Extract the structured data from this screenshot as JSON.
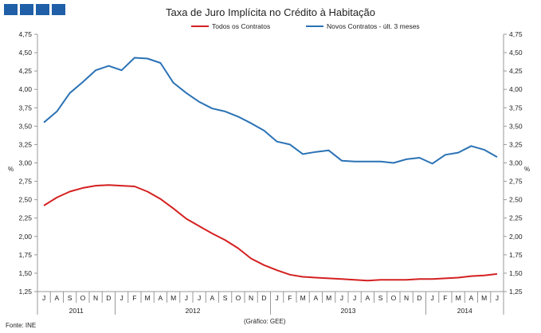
{
  "title": "Taxa de Juro Implícita no Crédito à Habitação",
  "source": "Fonte: INE",
  "credit": "(Gráfico: GEE)",
  "colors": {
    "series1": "#d42020",
    "series2": "#2a72b5",
    "logo": "#1f5fa8",
    "axis": "#999999"
  },
  "chart_data": {
    "type": "line",
    "title": "Taxa de Juro Implícita no Crédito à Habitação",
    "ylabel_left": "%",
    "ylabel_right": "%",
    "ylim": [
      1.25,
      4.75
    ],
    "yticks": [
      "4,75",
      "4,50",
      "4,25",
      "4,00",
      "3,75",
      "3,50",
      "3,25",
      "3,00",
      "2,75",
      "2,50",
      "2,25",
      "2,00",
      "1,75",
      "1,50",
      "1,25"
    ],
    "months": [
      "J",
      "A",
      "S",
      "O",
      "N",
      "D",
      "J",
      "F",
      "M",
      "A",
      "M",
      "J",
      "J",
      "A",
      "S",
      "O",
      "N",
      "D",
      "J",
      "F",
      "M",
      "A",
      "M",
      "J",
      "J",
      "A",
      "S",
      "O",
      "N",
      "D",
      "J",
      "F",
      "M",
      "A",
      "M",
      "J"
    ],
    "years": [
      {
        "label": "2011",
        "start": 0,
        "end": 5
      },
      {
        "label": "2012",
        "start": 6,
        "end": 17
      },
      {
        "label": "2013",
        "start": 18,
        "end": 29
      },
      {
        "label": "2014",
        "start": 30,
        "end": 35
      }
    ],
    "series": [
      {
        "name": "Todos os Contratos",
        "values": [
          2.42,
          2.53,
          2.61,
          2.66,
          2.69,
          2.7,
          2.69,
          2.68,
          2.61,
          2.51,
          2.38,
          2.24,
          2.14,
          2.04,
          1.95,
          1.84,
          1.7,
          1.61,
          1.54,
          1.48,
          1.45,
          1.44,
          1.43,
          1.42,
          1.41,
          1.4,
          1.41,
          1.41,
          1.41,
          1.42,
          1.42,
          1.43,
          1.44,
          1.46,
          1.47,
          1.49
        ]
      },
      {
        "name": "Novos Contratos - últ. 3 meses",
        "values": [
          3.55,
          3.7,
          3.95,
          4.1,
          4.26,
          4.32,
          4.26,
          4.43,
          4.42,
          4.36,
          4.09,
          3.95,
          3.83,
          3.74,
          3.7,
          3.63,
          3.54,
          3.44,
          3.29,
          3.25,
          3.12,
          3.15,
          3.17,
          3.03,
          3.02,
          3.02,
          3.02,
          3.0,
          3.05,
          3.07,
          2.99,
          3.11,
          3.14,
          3.23,
          3.18,
          3.08
        ]
      }
    ]
  }
}
